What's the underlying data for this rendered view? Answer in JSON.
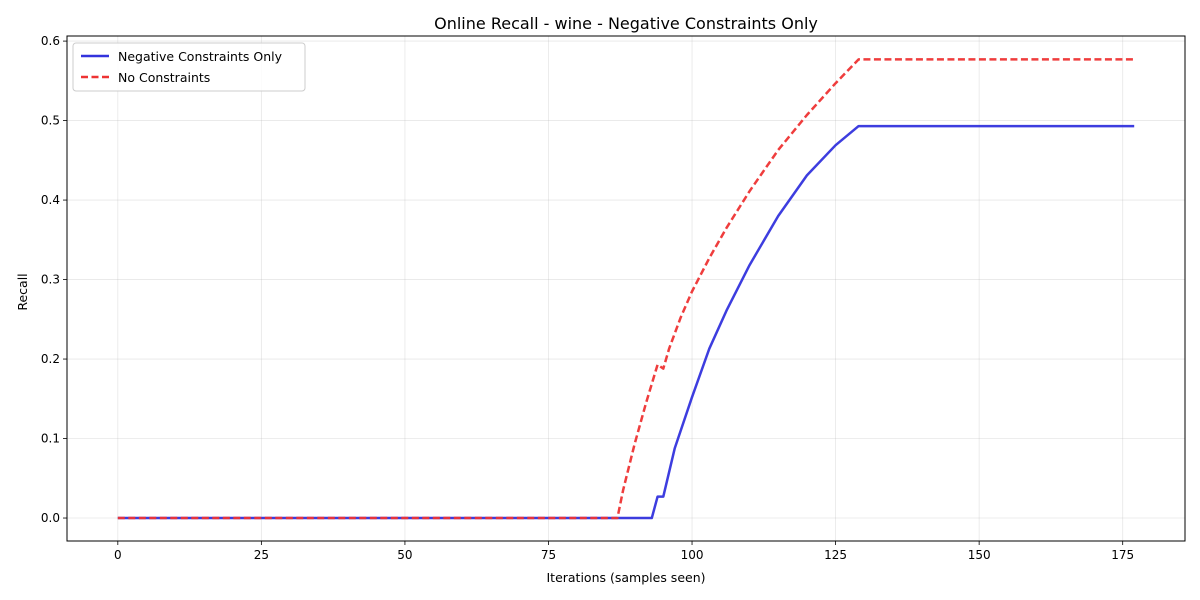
{
  "chart_data": {
    "type": "line",
    "title": "Online Recall - wine - Negative Constraints Only",
    "xlabel": "Iterations (samples seen)",
    "ylabel": "Recall",
    "xlim": [
      -8.85,
      185.85
    ],
    "ylim": [
      -0.0289,
      0.6064
    ],
    "xticks": [
      0,
      25,
      50,
      75,
      100,
      125,
      150,
      175
    ],
    "yticks": [
      0.0,
      0.1,
      0.2,
      0.3,
      0.4,
      0.5,
      0.6
    ],
    "xtick_labels": [
      "0",
      "25",
      "50",
      "75",
      "100",
      "125",
      "150",
      "175"
    ],
    "ytick_labels": [
      "0.0",
      "0.1",
      "0.2",
      "0.3",
      "0.4",
      "0.5",
      "0.6"
    ],
    "grid": true,
    "legend_position": "top-left",
    "series": [
      {
        "name": "Negative Constraints Only",
        "color": "#3333dd",
        "style": "solid",
        "x": [
          0,
          93,
          94,
          95,
          97,
          100,
          103,
          106,
          110,
          115,
          120,
          125,
          129,
          177
        ],
        "y": [
          0.0,
          0.0,
          0.027,
          0.027,
          0.088,
          0.152,
          0.213,
          0.261,
          0.318,
          0.38,
          0.431,
          0.469,
          0.493,
          0.493
        ]
      },
      {
        "name": "No Constraints",
        "color": "#ee3333",
        "style": "dashed",
        "x": [
          0,
          87,
          88,
          90,
          92,
          94,
          95,
          96,
          98,
          100,
          103,
          106,
          110,
          115,
          120,
          125,
          129,
          177
        ],
        "y": [
          0.0,
          0.0,
          0.035,
          0.093,
          0.145,
          0.193,
          0.188,
          0.213,
          0.252,
          0.285,
          0.327,
          0.365,
          0.411,
          0.463,
          0.507,
          0.547,
          0.577,
          0.577
        ]
      }
    ]
  }
}
